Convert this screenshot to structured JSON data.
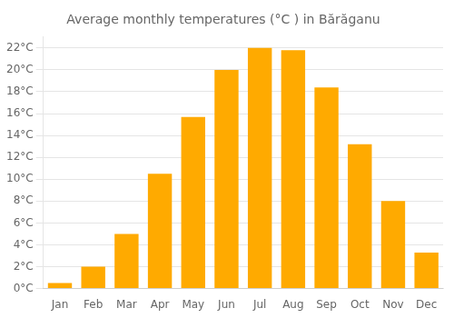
{
  "chart_data": {
    "type": "bar",
    "title": "Average monthly temperatures (°C ) in Bărăganu",
    "categories": [
      "Jan",
      "Feb",
      "Mar",
      "Apr",
      "May",
      "Jun",
      "Jul",
      "Aug",
      "Sep",
      "Oct",
      "Nov",
      "Dec"
    ],
    "values": [
      0.5,
      2.0,
      5.0,
      10.5,
      15.7,
      20.0,
      22.0,
      21.8,
      18.4,
      13.2,
      8.0,
      3.3
    ],
    "color": "#FFAA00",
    "ylim": [
      0,
      23
    ],
    "yticks": [
      {
        "value": 0,
        "label": "0°C"
      },
      {
        "value": 2,
        "label": "2°C"
      },
      {
        "value": 4,
        "label": "4°C"
      },
      {
        "value": 6,
        "label": "6°C"
      },
      {
        "value": 8,
        "label": "8°C"
      },
      {
        "value": 10,
        "label": "10°C"
      },
      {
        "value": 12,
        "label": "12°C"
      },
      {
        "value": 14,
        "label": "14°C"
      },
      {
        "value": 16,
        "label": "16°C"
      },
      {
        "value": 18,
        "label": "18°C"
      },
      {
        "value": 20,
        "label": "20°C"
      },
      {
        "value": 22,
        "label": "22°C"
      }
    ],
    "grid": true
  }
}
